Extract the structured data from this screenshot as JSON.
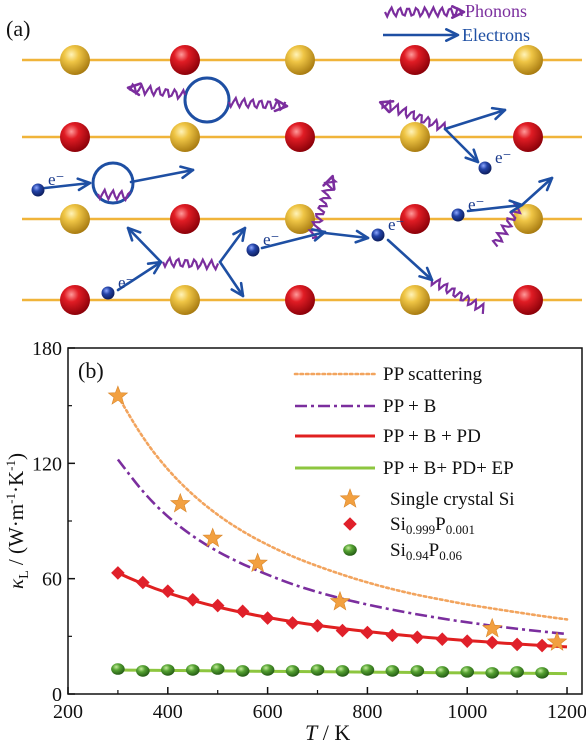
{
  "panel_a": {
    "label": "(a)",
    "legend": {
      "phonons": "Phonons",
      "electrons": "Electrons"
    },
    "electron_label": "e⁻",
    "colors": {
      "line": "#F0B43A",
      "atom_gold": "#D9A620",
      "atom_red": "#D0141E",
      "phonon": "#7B2E9E",
      "electron_arrow": "#1E4FA3",
      "electron_dot": "#1A3A8C"
    }
  },
  "panel_b": {
    "label": "(b)",
    "chart_data": {
      "type": "line",
      "title": "",
      "xlabel_italic": "T",
      "xlabel_unit": " / K",
      "ylabel_kappa": "κ",
      "ylabel_sub": "L",
      "ylabel_unit": " / (W·m",
      "ylabel_exp1": "-1",
      "ylabel_mid": "·K",
      "ylabel_exp2": "-1",
      "ylabel_close": ")",
      "xlim": [
        200,
        1230
      ],
      "ylim": [
        0,
        180
      ],
      "xticks": [
        200,
        400,
        600,
        800,
        1000,
        1200
      ],
      "yticks": [
        0,
        60,
        120,
        180
      ],
      "legend_position": "top-right",
      "series": [
        {
          "name": "PP scattering",
          "kind": "curve",
          "style": "dotted",
          "color": "#F2A45E",
          "x": [
            300,
            350,
            400,
            450,
            500,
            550,
            600,
            650,
            700,
            750,
            800,
            850,
            900,
            950,
            1000,
            1050,
            1100,
            1150,
            1200
          ],
          "y": [
            155,
            133,
            116.5,
            103.5,
            93,
            84.5,
            77.5,
            71.5,
            66.5,
            62,
            58,
            54.5,
            51.5,
            49,
            46.5,
            44.5,
            42.5,
            40.5,
            38.8
          ]
        },
        {
          "name": "PP + B",
          "kind": "curve",
          "style": "dashdot",
          "color": "#7B2E9E",
          "x": [
            300,
            350,
            400,
            450,
            500,
            550,
            600,
            650,
            700,
            750,
            800,
            850,
            900,
            950,
            1000,
            1050,
            1100,
            1150,
            1200
          ],
          "y": [
            122,
            105,
            92,
            82,
            74,
            67.5,
            62,
            57,
            53,
            49.5,
            46.5,
            43.8,
            41.4,
            39.2,
            37.3,
            35.5,
            33.9,
            32.5,
            31.2
          ]
        },
        {
          "name": "PP + B + PD",
          "kind": "curve",
          "style": "solid",
          "color": "#E02020",
          "x": [
            300,
            350,
            400,
            450,
            500,
            550,
            600,
            650,
            700,
            750,
            800,
            850,
            900,
            950,
            1000,
            1050,
            1100,
            1150,
            1200
          ],
          "y": [
            63,
            57.2,
            52.5,
            48.6,
            45.2,
            42.3,
            39.8,
            37.6,
            35.7,
            34,
            32.5,
            31.1,
            29.9,
            28.8,
            27.8,
            26.9,
            26,
            25.2,
            24.5
          ]
        },
        {
          "name": "PP + B+ PD+ EP",
          "kind": "curve",
          "style": "solid",
          "color": "#8DC63F",
          "x": [
            300,
            400,
            500,
            600,
            700,
            800,
            900,
            1000,
            1100,
            1200
          ],
          "y": [
            12.5,
            12.3,
            12,
            11.8,
            11.6,
            11.4,
            11.2,
            11,
            10.8,
            10.6
          ]
        },
        {
          "name": "Single crystal Si",
          "kind": "marker",
          "marker": "star",
          "color": "#F2A040",
          "x": [
            300,
            425,
            490,
            580,
            745,
            1050,
            1180
          ],
          "y": [
            155,
            99,
            81,
            68,
            48,
            34,
            27
          ]
        },
        {
          "name": "Si",
          "sub1": "0.999",
          "name_mid": "P",
          "sub2": "0.001",
          "kind": "marker",
          "marker": "diamond",
          "color": "#E0202A",
          "x": [
            300,
            350,
            400,
            450,
            500,
            550,
            600,
            650,
            700,
            750,
            800,
            850,
            900,
            950,
            1000,
            1050,
            1100,
            1150
          ],
          "y": [
            63,
            58,
            53.5,
            49,
            46,
            43,
            39.5,
            37,
            35.5,
            33,
            32,
            30.5,
            29.5,
            28.5,
            27.5,
            26.8,
            25.8,
            25.2
          ]
        },
        {
          "name": "Si",
          "sub1": "0.94",
          "name_mid": "P",
          "sub2": "0.06",
          "kind": "marker",
          "marker": "sphere",
          "color": "#3D8A28",
          "x": [
            300,
            350,
            400,
            450,
            500,
            550,
            600,
            650,
            700,
            750,
            800,
            850,
            900,
            950,
            1000,
            1050,
            1100,
            1150
          ],
          "y": [
            13,
            12,
            12.5,
            12.5,
            13,
            12,
            12.5,
            12,
            12.5,
            12,
            12.5,
            12,
            12,
            11.5,
            11.5,
            11,
            11.5,
            11
          ]
        }
      ]
    }
  }
}
